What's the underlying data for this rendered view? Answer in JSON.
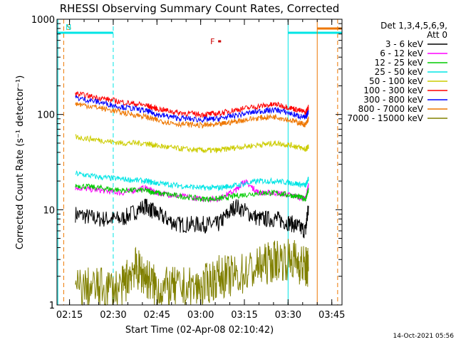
{
  "chart_data": {
    "type": "line",
    "title": "RHESSI Observing Summary Count Rates, Corrected",
    "xlabel": "Start Time (02-Apr-08 02:10:42)",
    "ylabel": "Corrected Count Rate (s⁻¹ detector⁻¹)",
    "y_scale": "log",
    "ylim": [
      1,
      1000
    ],
    "xlim": [
      "02:10:42",
      "03:48:30"
    ],
    "y_ticks": [
      "1",
      "10",
      "100",
      "1000"
    ],
    "x_ticks": [
      "02:15",
      "02:30",
      "02:45",
      "03:00",
      "03:15",
      "03:30",
      "03:45"
    ],
    "legend_header": [
      "Det 1,3,4,5,6,9,",
      "Att 0"
    ],
    "legend_position": "top-right",
    "footer": "14-Oct-2021 05:56",
    "flags": [
      {
        "label": "S",
        "color": "#ee7700",
        "start": "02:11",
        "end": "02:13"
      },
      {
        "label": "N",
        "color": "#00e5e5",
        "start": "02:10:42",
        "end": "02:30"
      },
      {
        "label": "F",
        "color": "#cc0000",
        "start": "03:06",
        "end": "03:07"
      },
      {
        "label": "",
        "color": "#00e5e5",
        "start": "03:30",
        "end": "03:48:30"
      },
      {
        "label": "",
        "color": "#ee7700",
        "start": "03:40",
        "end": "03:48:30"
      }
    ],
    "series": [
      {
        "name": "3 - 6 keV",
        "color": "#000000",
        "x": [
          "02:17",
          "02:25",
          "02:33",
          "02:41",
          "02:45",
          "02:52",
          "03:00",
          "03:06",
          "03:12",
          "03:20",
          "03:26",
          "03:32",
          "03:36",
          "03:37"
        ],
        "y": [
          9,
          8,
          8,
          11,
          9,
          7,
          7,
          7,
          11,
          8,
          8,
          7,
          6,
          11
        ]
      },
      {
        "name": "6 - 12 keV",
        "color": "#ff00ff",
        "x": [
          "02:17",
          "02:25",
          "02:33",
          "02:41",
          "02:45",
          "02:52",
          "03:00",
          "03:06",
          "03:12",
          "03:15",
          "03:20",
          "03:26",
          "03:32",
          "03:36",
          "03:37"
        ],
        "y": [
          17,
          16,
          15,
          17,
          15,
          14,
          13,
          13,
          16,
          20,
          15,
          15,
          14,
          13,
          18
        ]
      },
      {
        "name": "12 - 25 keV",
        "color": "#00cc00",
        "x": [
          "02:17",
          "02:25",
          "02:33",
          "02:41",
          "02:45",
          "02:52",
          "03:00",
          "03:06",
          "03:12",
          "03:20",
          "03:26",
          "03:32",
          "03:36",
          "03:37"
        ],
        "y": [
          18,
          17,
          16,
          16,
          15,
          14,
          13,
          13,
          14,
          15,
          15,
          14,
          13,
          16
        ]
      },
      {
        "name": "25 - 50 keV",
        "color": "#00e5e5",
        "x": [
          "02:17",
          "02:25",
          "02:33",
          "02:41",
          "02:45",
          "02:52",
          "03:00",
          "03:06",
          "03:12",
          "03:20",
          "03:26",
          "03:32",
          "03:36",
          "03:37"
        ],
        "y": [
          24,
          22,
          21,
          20,
          19,
          18,
          17,
          17,
          18,
          20,
          20,
          19,
          18,
          21
        ]
      },
      {
        "name": "50 - 100 keV",
        "color": "#cccc00",
        "x": [
          "02:17",
          "02:25",
          "02:33",
          "02:41",
          "02:45",
          "02:52",
          "03:00",
          "03:06",
          "03:12",
          "03:20",
          "03:26",
          "03:32",
          "03:36",
          "03:37"
        ],
        "y": [
          58,
          54,
          50,
          50,
          47,
          44,
          42,
          42,
          45,
          48,
          50,
          47,
          43,
          46
        ]
      },
      {
        "name": "100 - 300 keV",
        "color": "#ff0000",
        "x": [
          "02:17",
          "02:25",
          "02:33",
          "02:41",
          "02:45",
          "02:52",
          "03:00",
          "03:06",
          "03:12",
          "03:20",
          "03:26",
          "03:32",
          "03:36",
          "03:37"
        ],
        "y": [
          165,
          150,
          135,
          125,
          115,
          105,
          100,
          102,
          112,
          122,
          128,
          115,
          105,
          120
        ]
      },
      {
        "name": "300 - 800 keV",
        "color": "#0000ff",
        "x": [
          "02:17",
          "02:25",
          "02:33",
          "02:41",
          "02:45",
          "02:52",
          "03:00",
          "03:06",
          "03:12",
          "03:20",
          "03:26",
          "03:32",
          "03:36",
          "03:37"
        ],
        "y": [
          150,
          135,
          120,
          110,
          100,
          92,
          88,
          90,
          98,
          108,
          112,
          100,
          92,
          108
        ]
      },
      {
        "name": "800 - 7000 keV",
        "color": "#ee7700",
        "x": [
          "02:17",
          "02:25",
          "02:33",
          "02:41",
          "02:45",
          "02:52",
          "03:00",
          "03:06",
          "03:12",
          "03:20",
          "03:26",
          "03:32",
          "03:36",
          "03:37"
        ],
        "y": [
          130,
          118,
          105,
          95,
          87,
          80,
          77,
          78,
          85,
          92,
          95,
          85,
          78,
          90
        ]
      },
      {
        "name": "7000 - 15000 keV",
        "color": "#808000",
        "x": [
          "02:17",
          "02:25",
          "02:33",
          "02:37",
          "02:41",
          "02:45",
          "02:52",
          "03:00",
          "03:06",
          "03:12",
          "03:20",
          "03:26",
          "03:32",
          "03:36",
          "03:37"
        ],
        "y": [
          1.5,
          1.5,
          1.5,
          2.5,
          2,
          1.5,
          1.5,
          1.5,
          2,
          2,
          2.5,
          3,
          3,
          2.5,
          2.5
        ]
      }
    ]
  }
}
